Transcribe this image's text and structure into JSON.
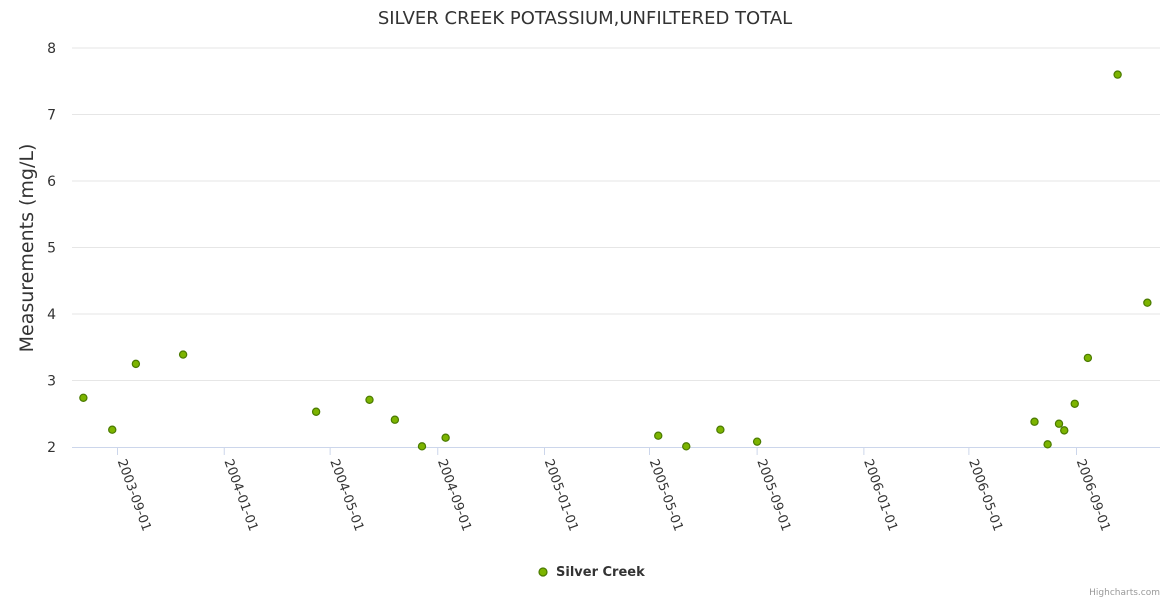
{
  "chart_data": {
    "type": "scatter",
    "title": "SILVER CREEK POTASSIUM,UNFILTERED TOTAL",
    "ylabel": "Measurements (mg/L)",
    "xlabel": "",
    "ylim": [
      2,
      8
    ],
    "yticks": [
      2,
      3,
      4,
      5,
      6,
      7,
      8
    ],
    "xticks": [
      "2003-09-01",
      "2004-01-01",
      "2004-05-01",
      "2004-09-01",
      "2005-01-01",
      "2005-05-01",
      "2005-09-01",
      "2006-01-01",
      "2006-05-01",
      "2006-09-01"
    ],
    "grid": true,
    "legend_position": "bottom",
    "series": [
      {
        "name": "Silver Creek",
        "color": "#7cb400",
        "points": [
          {
            "x": "2003-07-24",
            "y": 2.74
          },
          {
            "x": "2003-08-26",
            "y": 2.26
          },
          {
            "x": "2003-09-22",
            "y": 3.25
          },
          {
            "x": "2003-11-15",
            "y": 3.39
          },
          {
            "x": "2004-04-15",
            "y": 2.53
          },
          {
            "x": "2004-06-15",
            "y": 2.71
          },
          {
            "x": "2004-07-14",
            "y": 2.41
          },
          {
            "x": "2004-08-14",
            "y": 2.01
          },
          {
            "x": "2004-09-10",
            "y": 2.14
          },
          {
            "x": "2005-05-11",
            "y": 2.17
          },
          {
            "x": "2005-06-12",
            "y": 2.01
          },
          {
            "x": "2005-07-21",
            "y": 2.26
          },
          {
            "x": "2005-09-01",
            "y": 2.08
          },
          {
            "x": "2006-07-15",
            "y": 2.38
          },
          {
            "x": "2006-07-30",
            "y": 2.04
          },
          {
            "x": "2006-08-12",
            "y": 2.35
          },
          {
            "x": "2006-08-18",
            "y": 2.25
          },
          {
            "x": "2006-08-30",
            "y": 2.65
          },
          {
            "x": "2006-09-14",
            "y": 3.34
          },
          {
            "x": "2006-10-18",
            "y": 7.6
          },
          {
            "x": "2006-11-21",
            "y": 4.17
          }
        ]
      }
    ]
  },
  "credits": "Highcharts.com"
}
